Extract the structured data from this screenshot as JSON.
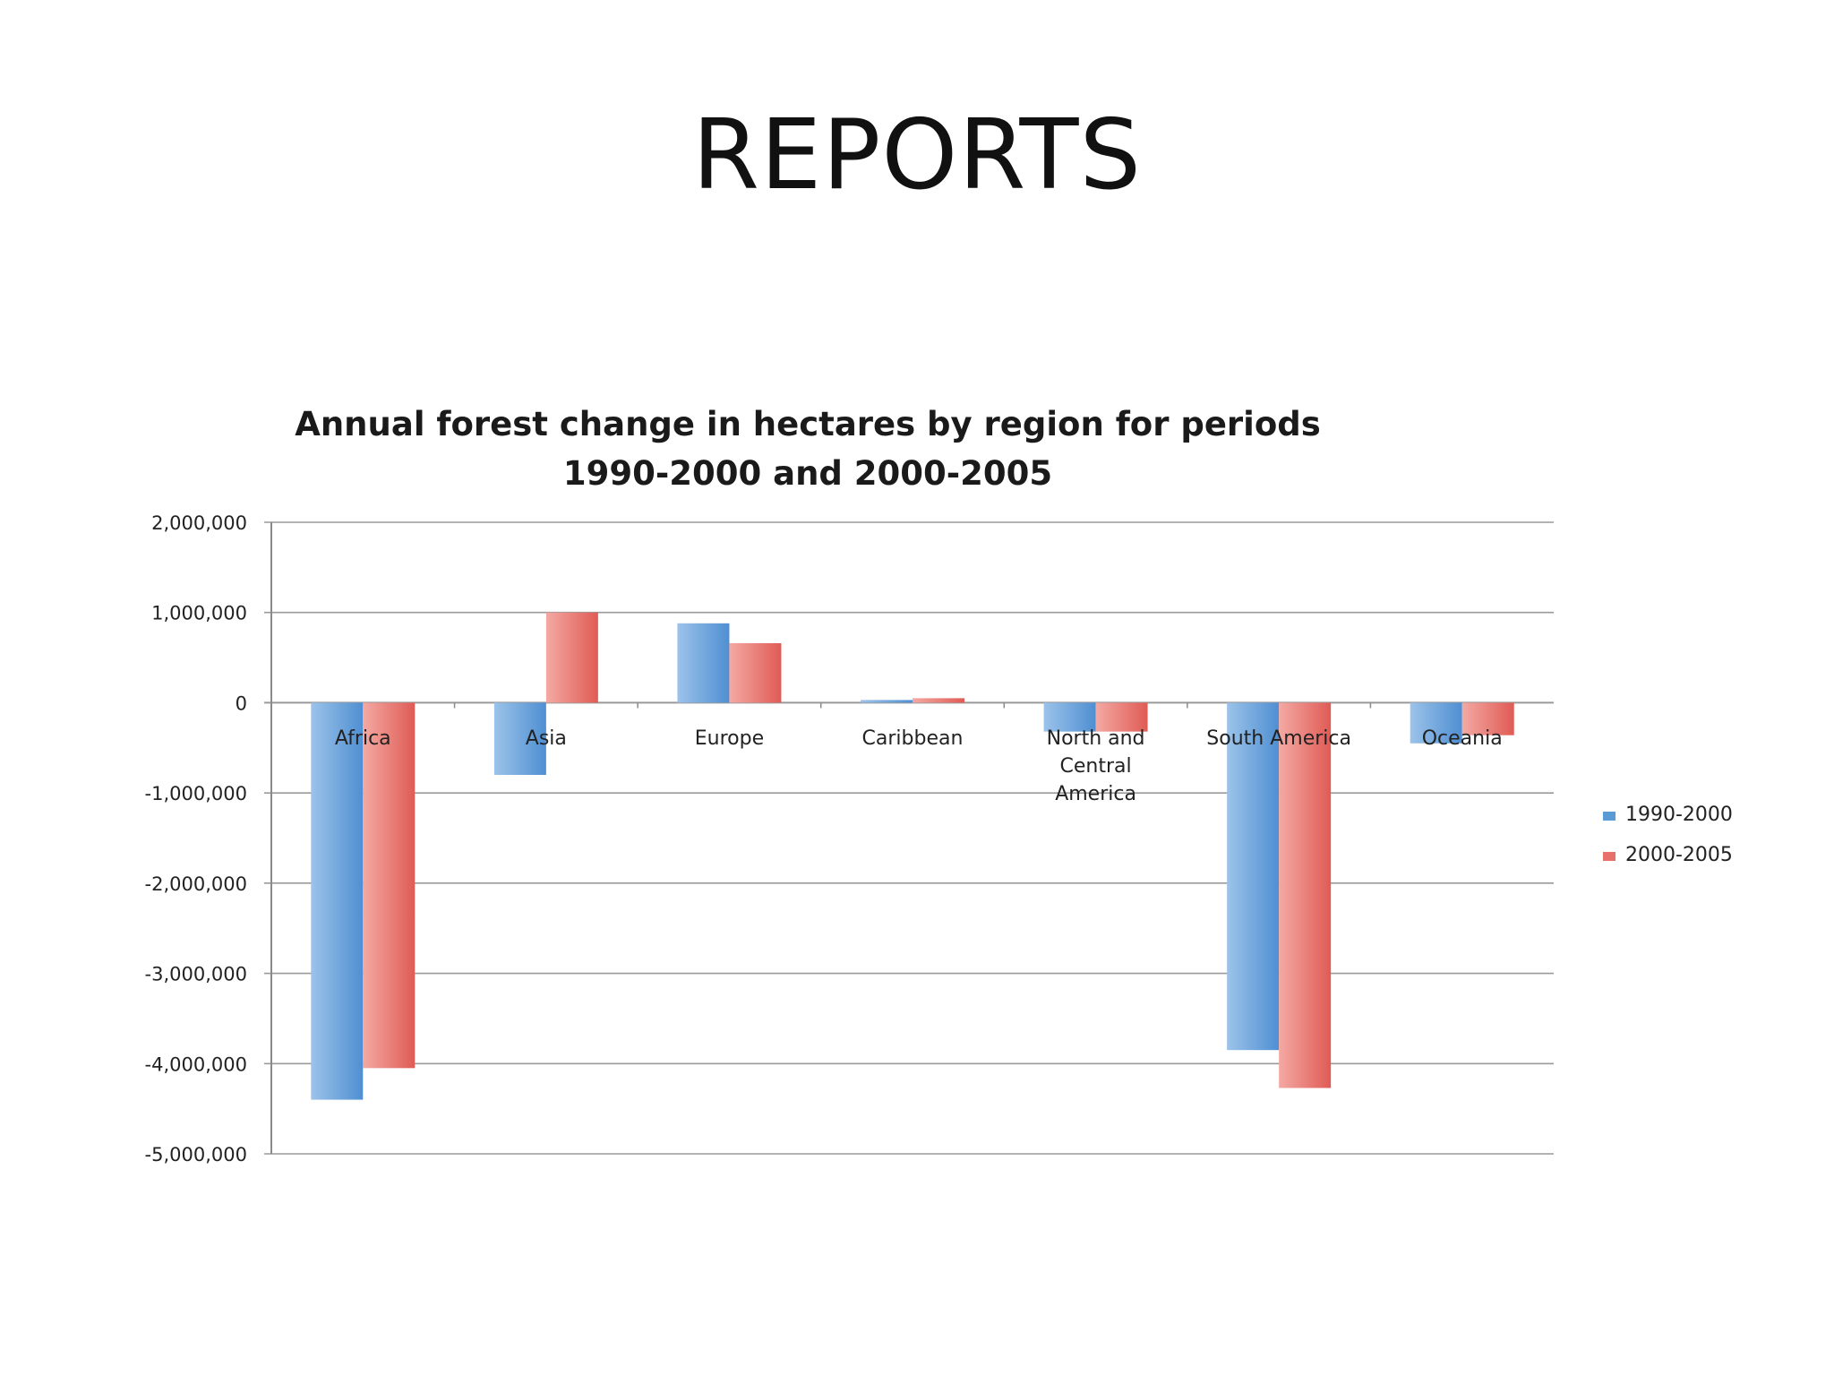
{
  "slide": {
    "title": "REPORTS"
  },
  "colors": {
    "series_1990_2000": "#5b9bd5",
    "series_2000_2005": "#e8706a",
    "grid": "#9a9a9a",
    "axis": "#8a8a8a",
    "text": "#222222"
  },
  "chart_data": {
    "type": "bar",
    "title": "Annual forest change in hectares by region for periods",
    "subtitle": "1990-2000 and 2000-2005",
    "xlabel": "",
    "ylabel": "",
    "ylim": [
      -5000000,
      2000000
    ],
    "yticks": [
      2000000,
      1000000,
      0,
      -1000000,
      -2000000,
      -3000000,
      -4000000,
      -5000000
    ],
    "ytick_labels": [
      "2,000,000",
      "1,000,000",
      "0",
      "-1,000,000",
      "-2,000,000",
      "-3,000,000",
      "-4,000,000",
      "-5,000,000"
    ],
    "categories": [
      "Africa",
      "Asia",
      "Europe",
      "Caribbean",
      "North and Central America",
      "South America",
      "Oceania"
    ],
    "category_label_lines": [
      [
        "Africa"
      ],
      [
        "Asia"
      ],
      [
        "Europe"
      ],
      [
        "Caribbean"
      ],
      [
        "North and",
        "Central",
        "America"
      ],
      [
        "South America"
      ],
      [
        "Oceania"
      ]
    ],
    "series": [
      {
        "name": "1990-2000",
        "values": [
          -4400000,
          -800000,
          880000,
          30000,
          -320000,
          -3850000,
          -450000
        ]
      },
      {
        "name": "2000-2005",
        "values": [
          -4050000,
          1000000,
          660000,
          50000,
          -320000,
          -4270000,
          -360000
        ]
      }
    ],
    "grid": true,
    "legend_position": "right"
  }
}
